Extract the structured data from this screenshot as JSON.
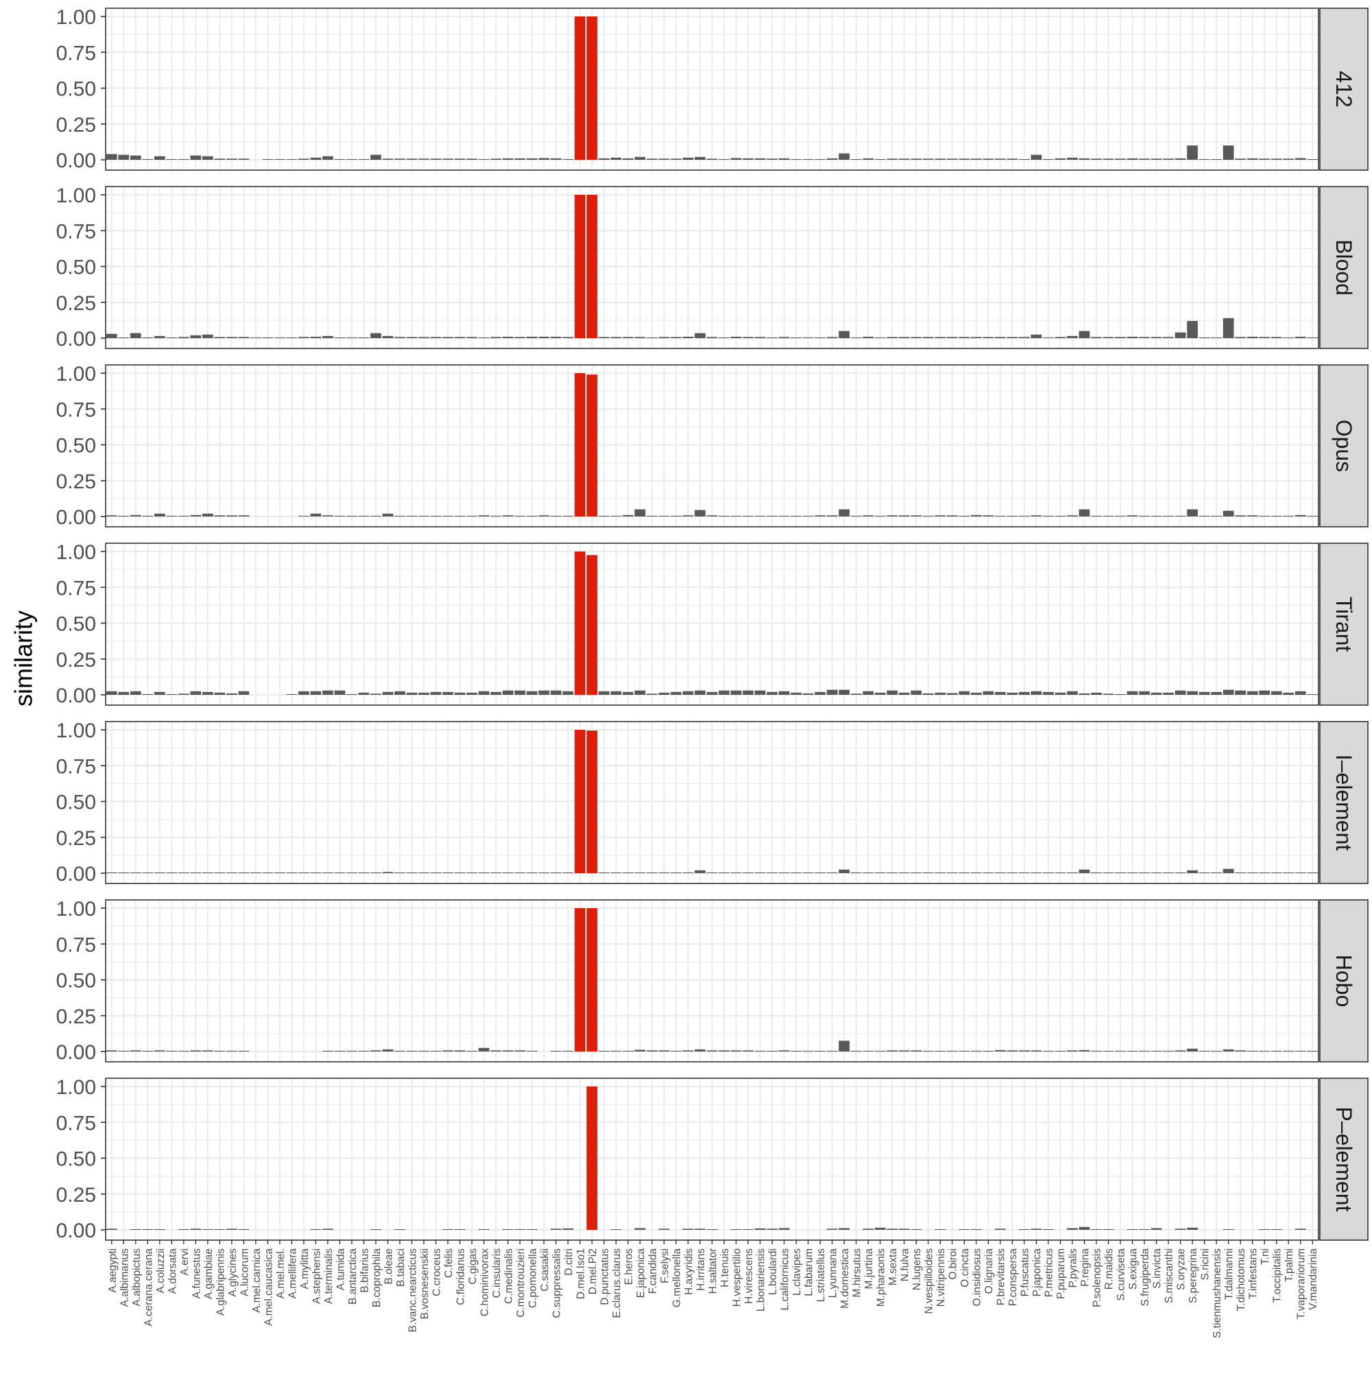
{
  "chart_data": {
    "type": "bar",
    "facet_layout": "vertical",
    "ylabel": "similarity",
    "xlabel": "",
    "ylim": [
      0,
      1.05
    ],
    "yticks": [
      "0.00",
      "0.25",
      "0.50",
      "0.75",
      "1.00"
    ],
    "highlight_color": "#dd1f0a",
    "bar_color": "#595959",
    "strip_fill": "#d9d9d9",
    "grid": true,
    "categories": [
      "A.aegypti",
      "A.albimanus",
      "A.albopictus",
      "A.cerana.cerana",
      "A.coluzzii",
      "A.dorsata",
      "A.ervi",
      "A.funestus",
      "A.gambiae",
      "A.glabripennis",
      "A.glycines",
      "A.lucorum",
      "A.mel.carnica",
      "A.mel.caucasica",
      "A.mel.mel.",
      "A.mellifera",
      "A.mylitta",
      "A.stephensi",
      "A.terminalis",
      "A.tumida",
      "B.antarctica",
      "B.bifarius",
      "B.coprophila",
      "B.oleae",
      "B.tabaci",
      "B.vanc.nearcticus",
      "B.vosnesenskii",
      "C.croceus",
      "C.felis",
      "C.floridanus",
      "C.gigas",
      "C.hominivorax",
      "C.insularis",
      "C.medinalis",
      "C.montrouzieri",
      "C.pomonella",
      "C.sasakii",
      "C.suppressalis",
      "D.citri",
      "D.mel.Iso1",
      "D.mel.Pi2",
      "D.punctatus",
      "E.clarus.clarus",
      "E.heros",
      "E.japonica",
      "F.candida",
      "F.selysi",
      "G.mellonella",
      "H.axyridis",
      "H.irritans",
      "H.saltator",
      "H.tenuis",
      "H.vespertilio",
      "H.virescens",
      "L.bonariensis",
      "L.boulardi",
      "L.californicus",
      "L.clavipes",
      "L.fabarum",
      "L.striatellus",
      "L.yunnana",
      "M.domestica",
      "M.hirsutus",
      "M.jurtina",
      "M.pharaonis",
      "M.sexta",
      "N.fulva",
      "N.lugens",
      "N.vespilloides",
      "N.vitripennis",
      "O.biroi",
      "O.cincta",
      "O.insidiosus",
      "O.lignaria",
      "P.brevitarsis",
      "P.conspersa",
      "P.fuscatus",
      "P.japonica",
      "P.metricus",
      "P.puparum",
      "P.pyralis",
      "P.regina",
      "P.solenopsis",
      "R.maidis",
      "S.curviseta",
      "S.exigua",
      "S.frugiperda",
      "S.invicta",
      "S.miscanthi",
      "S.oryzae",
      "S.peregrina",
      "S.ricini",
      "S.tienmushanensis",
      "T.dalmanni",
      "T.dichotomus",
      "T.infestans",
      "T.ni",
      "T.occipitalis",
      "T.palmi",
      "T.vaporariorum",
      "V.mandarinia"
    ],
    "highlight_categories": [
      "D.mel.Iso1",
      "D.mel.Pi2"
    ],
    "facets": [
      {
        "name": "412",
        "values": [
          0.04,
          0.035,
          0.03,
          0.005,
          0.025,
          0.005,
          0.005,
          0.03,
          0.025,
          0.008,
          0.008,
          0.008,
          0,
          0.005,
          0.005,
          0.005,
          0.008,
          0.015,
          0.025,
          0.005,
          0.005,
          0.005,
          0.035,
          0.008,
          0.008,
          0.008,
          0.008,
          0.008,
          0.008,
          0.008,
          0.008,
          0.005,
          0.008,
          0.01,
          0.01,
          0.01,
          0.012,
          0.01,
          0.005,
          1.0,
          1.0,
          0.01,
          0.015,
          0.01,
          0.02,
          0.008,
          0.008,
          0.008,
          0.015,
          0.02,
          0.008,
          0.005,
          0.012,
          0.01,
          0.01,
          0.008,
          0.01,
          0.005,
          0.005,
          0.005,
          0.01,
          0.045,
          0.005,
          0.01,
          0.005,
          0.008,
          0.008,
          0.008,
          0.008,
          0.008,
          0.008,
          0.008,
          0.008,
          0.008,
          0.008,
          0.008,
          0.005,
          0.035,
          0.005,
          0.01,
          0.015,
          0.01,
          0.008,
          0.008,
          0.008,
          0.01,
          0.008,
          0.008,
          0.008,
          0.01,
          0.1,
          0.005,
          0.005,
          0.1,
          0.008,
          0.01,
          0.008,
          0.008,
          0.008,
          0.012,
          0.005
        ]
      },
      {
        "name": "Blood",
        "values": [
          0.03,
          0.005,
          0.035,
          0.005,
          0.015,
          0.005,
          0.008,
          0.02,
          0.025,
          0.008,
          0.008,
          0.008,
          0.005,
          0.005,
          0.005,
          0.005,
          0.008,
          0.01,
          0.015,
          0.005,
          0.005,
          0.005,
          0.035,
          0.015,
          0.008,
          0.008,
          0.008,
          0.008,
          0.008,
          0.008,
          0.008,
          0.005,
          0.008,
          0.01,
          0.008,
          0.01,
          0.01,
          0.01,
          0.008,
          1.0,
          1.0,
          0.008,
          0.008,
          0.008,
          0.008,
          0.005,
          0.008,
          0.008,
          0.01,
          0.035,
          0.008,
          0.005,
          0.01,
          0.008,
          0.008,
          0.005,
          0.008,
          0.005,
          0.005,
          0.005,
          0.008,
          0.05,
          0.005,
          0.01,
          0.005,
          0.008,
          0.008,
          0.008,
          0.008,
          0.008,
          0.008,
          0.008,
          0.008,
          0.008,
          0.008,
          0.008,
          0.008,
          0.025,
          0.005,
          0.008,
          0.015,
          0.05,
          0.008,
          0.008,
          0.008,
          0.01,
          0.008,
          0.008,
          0.008,
          0.04,
          0.12,
          0.005,
          0.005,
          0.14,
          0.008,
          0.01,
          0.008,
          0.008,
          0.005,
          0.01,
          0.005
        ]
      },
      {
        "name": "Opus",
        "values": [
          0.008,
          0.005,
          0.01,
          0.005,
          0.02,
          0.005,
          0.005,
          0.01,
          0.02,
          0.008,
          0.008,
          0.008,
          0,
          0,
          0,
          0,
          0.005,
          0.02,
          0.008,
          0.005,
          0.005,
          0.005,
          0.005,
          0.02,
          0.005,
          0.005,
          0.005,
          0.005,
          0.005,
          0.005,
          0.005,
          0.008,
          0.005,
          0.008,
          0.005,
          0.005,
          0.008,
          0.005,
          0.005,
          1.0,
          0.99,
          0.005,
          0.005,
          0.01,
          0.05,
          0.005,
          0.005,
          0.005,
          0.008,
          0.045,
          0.008,
          0.005,
          0.005,
          0.005,
          0.005,
          0.005,
          0.005,
          0.005,
          0.005,
          0.008,
          0.008,
          0.05,
          0.005,
          0.008,
          0.005,
          0.008,
          0.008,
          0.008,
          0.005,
          0.008,
          0.008,
          0.005,
          0.01,
          0.008,
          0.005,
          0.005,
          0.005,
          0.008,
          0.005,
          0.005,
          0.008,
          0.05,
          0.005,
          0.005,
          0.005,
          0.008,
          0.005,
          0.005,
          0.005,
          0.005,
          0.05,
          0.005,
          0.005,
          0.04,
          0.008,
          0.008,
          0.005,
          0.005,
          0.005,
          0.01,
          0.005
        ]
      },
      {
        "name": "Tirant",
        "values": [
          0.025,
          0.02,
          0.025,
          0.005,
          0.02,
          0.005,
          0.008,
          0.025,
          0.02,
          0.015,
          0.01,
          0.025,
          0,
          0,
          0,
          0.005,
          0.025,
          0.025,
          0.03,
          0.03,
          0.005,
          0.015,
          0.008,
          0.02,
          0.025,
          0.015,
          0.015,
          0.02,
          0.02,
          0.015,
          0.015,
          0.025,
          0.02,
          0.03,
          0.03,
          0.025,
          0.03,
          0.03,
          0.025,
          1.0,
          0.975,
          0.025,
          0.025,
          0.02,
          0.03,
          0.008,
          0.015,
          0.02,
          0.025,
          0.03,
          0.02,
          0.03,
          0.03,
          0.03,
          0.03,
          0.02,
          0.025,
          0.015,
          0.01,
          0.02,
          0.035,
          0.035,
          0.008,
          0.025,
          0.015,
          0.03,
          0.015,
          0.03,
          0.01,
          0.015,
          0.012,
          0.025,
          0.015,
          0.025,
          0.02,
          0.015,
          0.02,
          0.025,
          0.02,
          0.015,
          0.025,
          0.01,
          0.015,
          0.008,
          0.005,
          0.025,
          0.025,
          0.015,
          0.015,
          0.03,
          0.025,
          0.02,
          0.02,
          0.035,
          0.03,
          0.025,
          0.03,
          0.025,
          0.015,
          0.025,
          0.005
        ]
      },
      {
        "name": "I–element",
        "values": [
          0.005,
          0.003,
          0.005,
          0.003,
          0.005,
          0.003,
          0.003,
          0.005,
          0.005,
          0.005,
          0.005,
          0.005,
          0.005,
          0.005,
          0.005,
          0.005,
          0.005,
          0.005,
          0.005,
          0.005,
          0.003,
          0.005,
          0.005,
          0.008,
          0.003,
          0.005,
          0.005,
          0.005,
          0.005,
          0.003,
          0.003,
          0.005,
          0.005,
          0.005,
          0.005,
          0.005,
          0.003,
          0.003,
          0.003,
          1.0,
          0.995,
          0.005,
          0.005,
          0.005,
          0.005,
          0.005,
          0.005,
          0.005,
          0.005,
          0.02,
          0.005,
          0.005,
          0.005,
          0.005,
          0.005,
          0.005,
          0.005,
          0.005,
          0.005,
          0.003,
          0.005,
          0.025,
          0.005,
          0.003,
          0.005,
          0.005,
          0.005,
          0.005,
          0.005,
          0.005,
          0.003,
          0.003,
          0.005,
          0.005,
          0.005,
          0.003,
          0.005,
          0.005,
          0.003,
          0.005,
          0.005,
          0.025,
          0.005,
          0.005,
          0.005,
          0.005,
          0.003,
          0.003,
          0.005,
          0.005,
          0.02,
          0.003,
          0.005,
          0.03,
          0.005,
          0.005,
          0.003,
          0.003,
          0.005,
          0.005,
          0.003
        ]
      },
      {
        "name": "Hobo",
        "values": [
          0.008,
          0.005,
          0.008,
          0.003,
          0.008,
          0.005,
          0.003,
          0.008,
          0.008,
          0.005,
          0.005,
          0.005,
          0,
          0,
          0,
          0,
          0,
          0,
          0.005,
          0.005,
          0.005,
          0.005,
          0.008,
          0.015,
          0.003,
          0.005,
          0.005,
          0.005,
          0.008,
          0.008,
          0.005,
          0.025,
          0.008,
          0.008,
          0.008,
          0.005,
          0,
          0.003,
          0.005,
          1.0,
          1.0,
          0.003,
          0.005,
          0.005,
          0.012,
          0.008,
          0.008,
          0.005,
          0.008,
          0.015,
          0.008,
          0.008,
          0.008,
          0.008,
          0.005,
          0.003,
          0.008,
          0.003,
          0.003,
          0.003,
          0.005,
          0.075,
          0.005,
          0.005,
          0.003,
          0.008,
          0.008,
          0.008,
          0.005,
          0.003,
          0.003,
          0.005,
          0.005,
          0.003,
          0.01,
          0.008,
          0.008,
          0.008,
          0.005,
          0.003,
          0.008,
          0.01,
          0.005,
          0.003,
          0.005,
          0.003,
          0.003,
          0.005,
          0.003,
          0.008,
          0.02,
          0.005,
          0.003,
          0.015,
          0.008,
          0.005,
          0.003,
          0.005,
          0.005,
          0.005,
          0.003
        ]
      },
      {
        "name": "P–element",
        "values": [
          0.008,
          0,
          0.005,
          0.005,
          0.005,
          0,
          0.005,
          0.008,
          0.005,
          0.005,
          0.008,
          0.005,
          0,
          0,
          0,
          0,
          0,
          0.005,
          0.008,
          0,
          0,
          0,
          0.005,
          0,
          0.005,
          0,
          0,
          0,
          0.005,
          0.005,
          0,
          0.005,
          0,
          0.005,
          0.005,
          0.005,
          0,
          0.008,
          0.01,
          0,
          1.0,
          0,
          0.003,
          0,
          0.012,
          0,
          0.008,
          0,
          0.008,
          0.008,
          0.005,
          0,
          0.005,
          0.005,
          0.01,
          0.008,
          0.012,
          0,
          0,
          0,
          0.008,
          0.012,
          0,
          0.008,
          0.015,
          0.008,
          0.008,
          0.005,
          0,
          0.005,
          0,
          0.005,
          0.005,
          0,
          0.008,
          0,
          0.005,
          0.008,
          0.005,
          0,
          0.012,
          0.02,
          0.005,
          0.005,
          0,
          0.005,
          0.005,
          0.012,
          0,
          0.008,
          0.015,
          0,
          0,
          0.005,
          0,
          0,
          0.005,
          0.005,
          0,
          0.008,
          0
        ]
      }
    ]
  }
}
